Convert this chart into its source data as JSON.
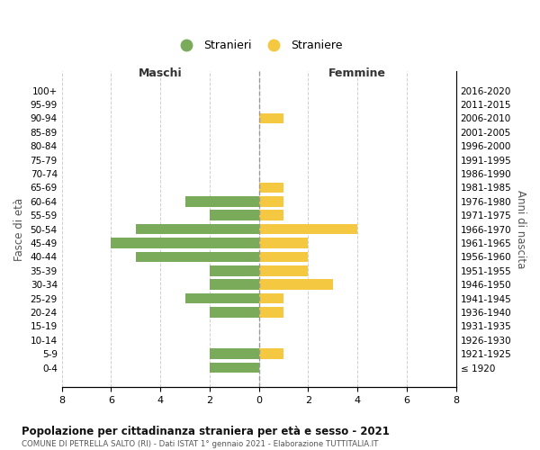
{
  "age_groups": [
    "100+",
    "95-99",
    "90-94",
    "85-89",
    "80-84",
    "75-79",
    "70-74",
    "65-69",
    "60-64",
    "55-59",
    "50-54",
    "45-49",
    "40-44",
    "35-39",
    "30-34",
    "25-29",
    "20-24",
    "15-19",
    "10-14",
    "5-9",
    "0-4"
  ],
  "birth_years": [
    "≤ 1920",
    "1921-1925",
    "1926-1930",
    "1931-1935",
    "1936-1940",
    "1941-1945",
    "1946-1950",
    "1951-1955",
    "1956-1960",
    "1961-1965",
    "1966-1970",
    "1971-1975",
    "1976-1980",
    "1981-1985",
    "1986-1990",
    "1991-1995",
    "1996-2000",
    "2001-2005",
    "2006-2010",
    "2011-2015",
    "2016-2020"
  ],
  "maschi": [
    0,
    0,
    0,
    0,
    0,
    0,
    0,
    0,
    3,
    2,
    5,
    6,
    5,
    2,
    2,
    3,
    2,
    0,
    0,
    2,
    2
  ],
  "femmine": [
    0,
    0,
    1,
    0,
    0,
    0,
    0,
    1,
    1,
    1,
    4,
    2,
    2,
    2,
    3,
    1,
    1,
    0,
    0,
    1,
    0
  ],
  "maschi_color": "#7aab5a",
  "femmine_color": "#f5c842",
  "title": "Popolazione per cittadinanza straniera per età e sesso - 2021",
  "subtitle": "COMUNE DI PETRELLA SALTO (RI) - Dati ISTAT 1° gennaio 2021 - Elaborazione TUTTITALIA.IT",
  "xlabel_left": "Maschi",
  "xlabel_right": "Femmine",
  "ylabel_left": "Fasce di età",
  "ylabel_right": "Anni di nascita",
  "legend_stranieri": "Stranieri",
  "legend_straniere": "Straniere",
  "xlim": 8,
  "background_color": "#ffffff",
  "grid_color": "#d0d0d0"
}
